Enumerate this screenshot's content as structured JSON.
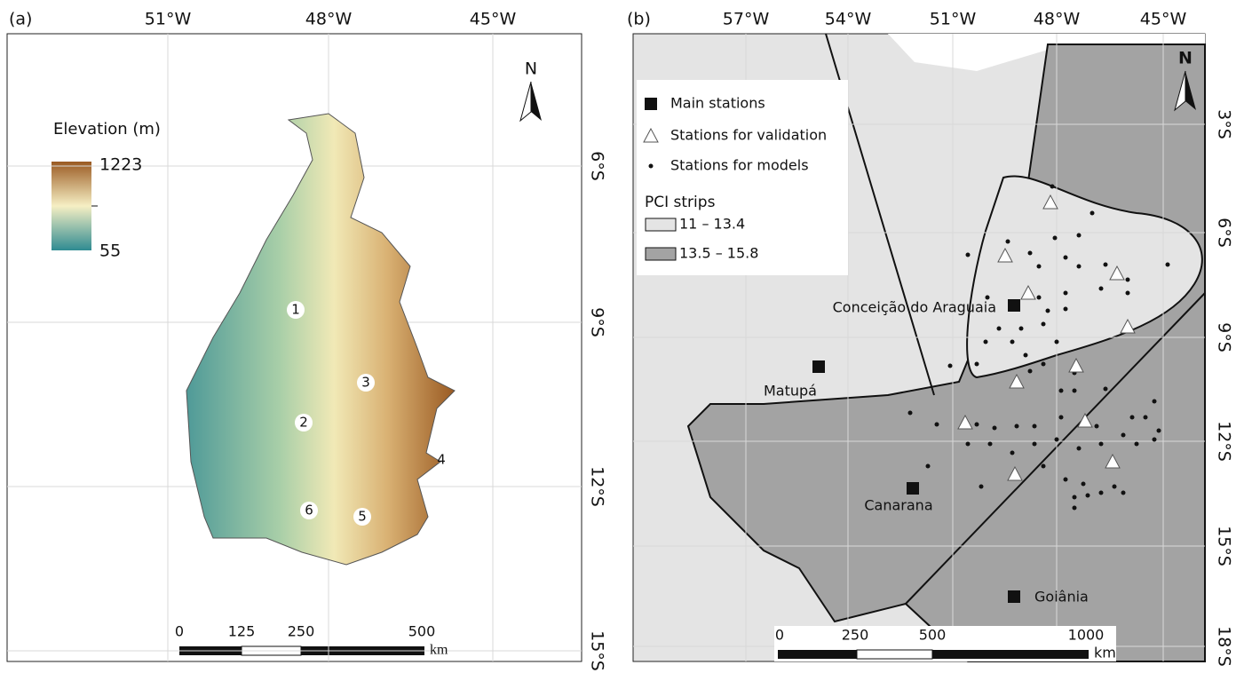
{
  "panel_a": {
    "label": "(a)",
    "longitude_labels": [
      "51°W",
      "48°W",
      "45°W"
    ],
    "latitude_labels": [
      "6°S",
      "9°S",
      "12°S",
      "15°S"
    ],
    "north": "N",
    "legend": {
      "title": "Elevation (m)",
      "max": "1223",
      "min": "55"
    },
    "region_labels": [
      "1",
      "2",
      "3",
      "4",
      "5",
      "6"
    ],
    "scale_bar": {
      "ticks": [
        "0",
        "125",
        "250",
        "500"
      ],
      "unit": "km"
    }
  },
  "panel_b": {
    "label": "(b)",
    "longitude_labels": [
      "57°W",
      "54°W",
      "51°W",
      "48°W",
      "45°W"
    ],
    "latitude_labels": [
      "3°S",
      "6°S",
      "9°S",
      "12°S",
      "15°S",
      "18°S"
    ],
    "north": "N",
    "legend": {
      "items": [
        "Main stations",
        "Stations for validation",
        "Stations for models"
      ],
      "pci_title": "PCI strips",
      "pci_items": [
        "11 – 13.4",
        "13.5 – 15.8"
      ]
    },
    "stations": [
      "Conceição do Araguaia",
      "Matupá",
      "Canarana",
      "Goiânia"
    ],
    "scale_bar": {
      "ticks": [
        "0",
        "250",
        "500",
        "1000"
      ],
      "unit": "km"
    }
  }
}
